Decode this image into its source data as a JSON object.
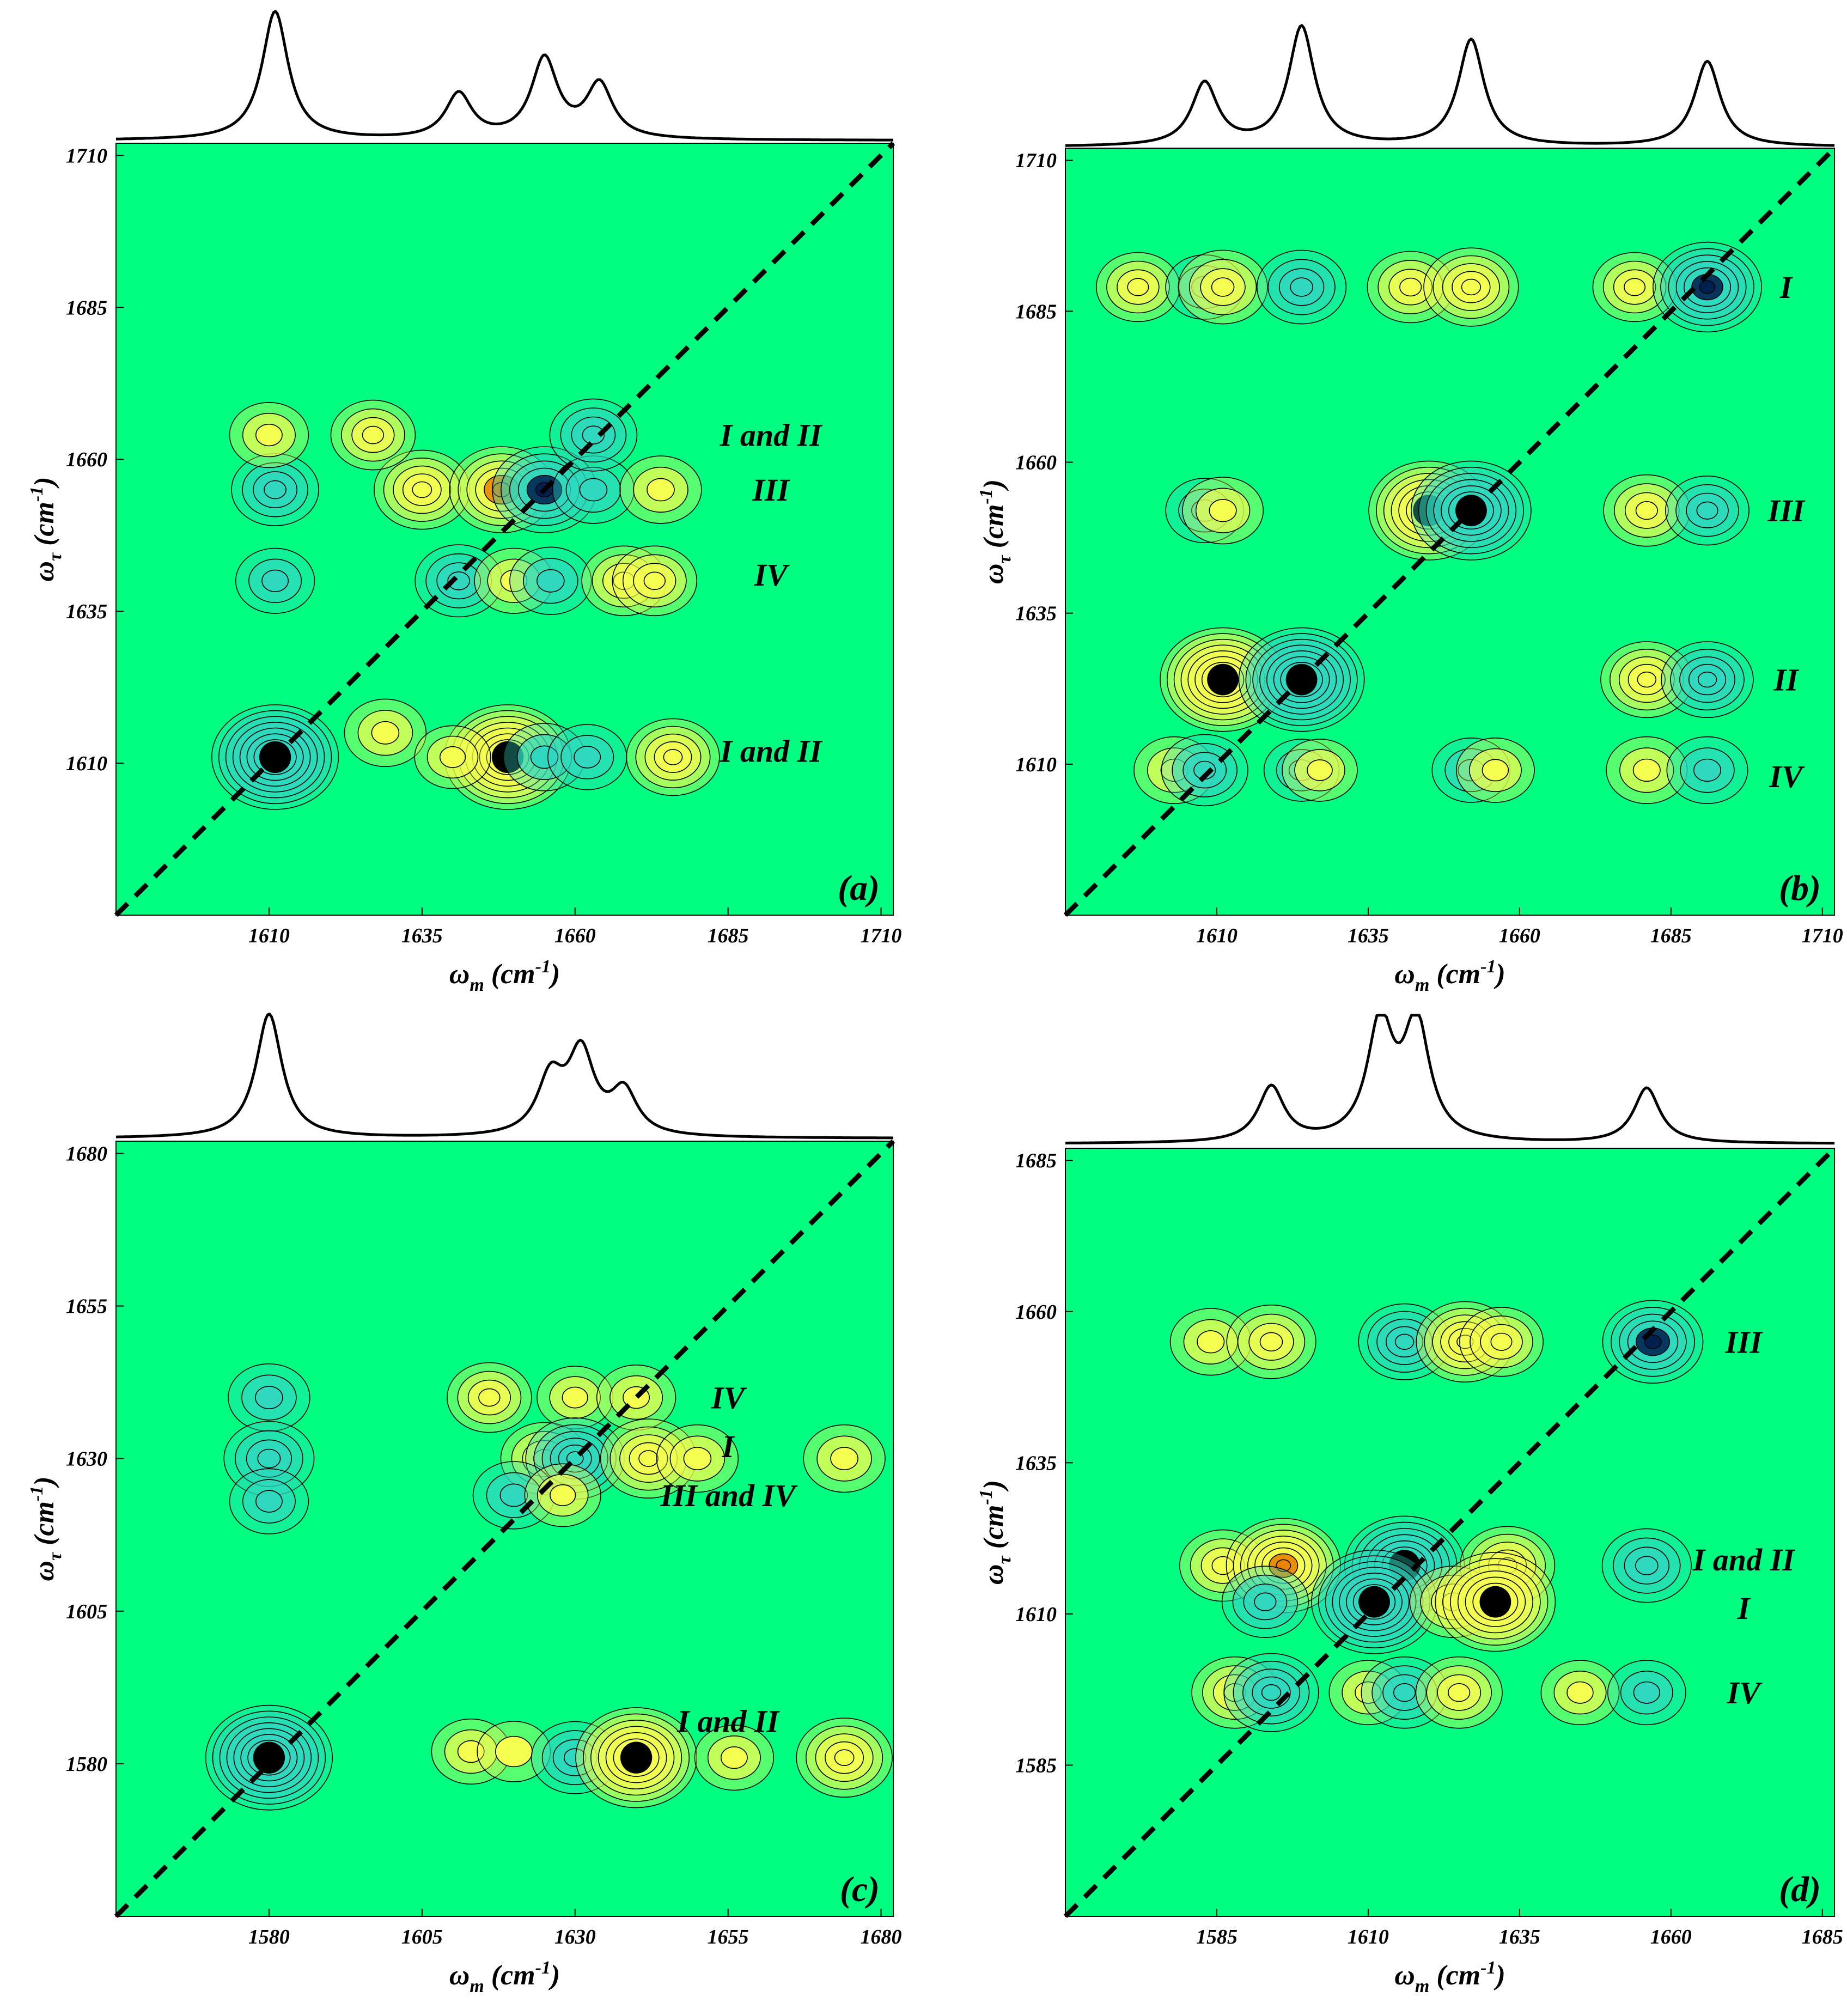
{
  "figure": {
    "colors": {
      "background": "#00ff80",
      "positive": "#f5ff50",
      "positive_core": "#e88400",
      "negative": "#30d8c0",
      "negative_core": "#002050",
      "line": "#000000"
    }
  },
  "chart_data": [
    {
      "type": "contour",
      "panel_label": "(a)",
      "xlabel": "ω_m (cm^-1)",
      "ylabel": "ω_τ (cm^-1)",
      "xlim": [
        1585,
        1712
      ],
      "ylim": [
        1585,
        1712
      ],
      "xticks": [
        1610,
        1635,
        1660,
        1685,
        1710
      ],
      "yticks": [
        1610,
        1635,
        1660,
        1685,
        1710
      ],
      "diagonal": true,
      "spectrum_peaks": [
        {
          "x": 1611,
          "height": 1.0
        },
        {
          "x": 1641,
          "height": 0.35
        },
        {
          "x": 1655,
          "height": 0.62
        },
        {
          "x": 1664,
          "height": 0.42
        }
      ],
      "peaks": [
        {
          "x": 1611,
          "y": 1611,
          "sign": "negative",
          "amp": 1.0
        },
        {
          "x": 1649,
          "y": 1611,
          "sign": "positive",
          "amp": 1.0
        },
        {
          "x": 1629,
          "y": 1615,
          "sign": "positive",
          "amp": 0.2
        },
        {
          "x": 1640,
          "y": 1611,
          "sign": "positive",
          "amp": 0.1
        },
        {
          "x": 1655,
          "y": 1611,
          "sign": "negative",
          "amp": 0.2
        },
        {
          "x": 1662,
          "y": 1611,
          "sign": "negative",
          "amp": 0.15
        },
        {
          "x": 1676,
          "y": 1611,
          "sign": "positive",
          "amp": 0.4
        },
        {
          "x": 1611,
          "y": 1640,
          "sign": "negative",
          "amp": 0.15
        },
        {
          "x": 1641,
          "y": 1640,
          "sign": "negative",
          "amp": 0.3
        },
        {
          "x": 1650,
          "y": 1640,
          "sign": "positive",
          "amp": 0.15
        },
        {
          "x": 1656,
          "y": 1640,
          "sign": "negative",
          "amp": 0.2
        },
        {
          "x": 1668,
          "y": 1640,
          "sign": "positive",
          "amp": 0.25
        },
        {
          "x": 1673,
          "y": 1640,
          "sign": "positive",
          "amp": 0.25
        },
        {
          "x": 1611,
          "y": 1655,
          "sign": "negative",
          "amp": 0.3
        },
        {
          "x": 1635,
          "y": 1655,
          "sign": "positive",
          "amp": 0.45
        },
        {
          "x": 1648,
          "y": 1655,
          "sign": "positive",
          "amp": 0.6
        },
        {
          "x": 1655,
          "y": 1655,
          "sign": "negative",
          "amp": 0.6
        },
        {
          "x": 1663,
          "y": 1655,
          "sign": "negative",
          "amp": 0.2
        },
        {
          "x": 1674,
          "y": 1655,
          "sign": "positive",
          "amp": 0.2
        },
        {
          "x": 1610,
          "y": 1664,
          "sign": "positive",
          "amp": 0.15
        },
        {
          "x": 1627,
          "y": 1664,
          "sign": "positive",
          "amp": 0.25
        },
        {
          "x": 1663,
          "y": 1664,
          "sign": "negative",
          "amp": 0.3
        }
      ],
      "annotations": [
        {
          "text": "I and II",
          "x": 1692,
          "y": 1664
        },
        {
          "text": "III",
          "x": 1692,
          "y": 1655
        },
        {
          "text": "IV",
          "x": 1692,
          "y": 1641
        },
        {
          "text": "I and II",
          "x": 1692,
          "y": 1612
        }
      ]
    },
    {
      "type": "contour",
      "panel_label": "(b)",
      "xlabel": "ω_m (cm^-1)",
      "ylabel": "ω_τ (cm^-1)",
      "xlim": [
        1585,
        1712
      ],
      "ylim": [
        1585,
        1712
      ],
      "xticks": [
        1610,
        1635,
        1660,
        1685,
        1710
      ],
      "yticks": [
        1610,
        1635,
        1660,
        1685,
        1710
      ],
      "diagonal": true,
      "spectrum_peaks": [
        {
          "x": 1608,
          "height": 0.5
        },
        {
          "x": 1624,
          "height": 0.95
        },
        {
          "x": 1652,
          "height": 0.85
        },
        {
          "x": 1691,
          "height": 0.68
        }
      ],
      "peaks": [
        {
          "x": 1597,
          "y": 1689,
          "sign": "positive",
          "amp": 0.25
        },
        {
          "x": 1608,
          "y": 1689,
          "sign": "negative",
          "amp": 0.15
        },
        {
          "x": 1611,
          "y": 1689,
          "sign": "positive",
          "amp": 0.35
        },
        {
          "x": 1624,
          "y": 1689,
          "sign": "negative",
          "amp": 0.35
        },
        {
          "x": 1642,
          "y": 1689,
          "sign": "positive",
          "amp": 0.3
        },
        {
          "x": 1652,
          "y": 1689,
          "sign": "positive",
          "amp": 0.45
        },
        {
          "x": 1679,
          "y": 1689,
          "sign": "positive",
          "amp": 0.25
        },
        {
          "x": 1691,
          "y": 1689,
          "sign": "negative",
          "amp": 0.7
        },
        {
          "x": 1608,
          "y": 1652,
          "sign": "negative",
          "amp": 0.15
        },
        {
          "x": 1611,
          "y": 1652,
          "sign": "positive",
          "amp": 0.2
        },
        {
          "x": 1645,
          "y": 1652,
          "sign": "positive",
          "amp": 0.9
        },
        {
          "x": 1652,
          "y": 1652,
          "sign": "negative",
          "amp": 0.9
        },
        {
          "x": 1681,
          "y": 1652,
          "sign": "positive",
          "amp": 0.3
        },
        {
          "x": 1691,
          "y": 1652,
          "sign": "negative",
          "amp": 0.25
        },
        {
          "x": 1611,
          "y": 1624,
          "sign": "positive",
          "amp": 1.0
        },
        {
          "x": 1624,
          "y": 1624,
          "sign": "negative",
          "amp": 1.0
        },
        {
          "x": 1681,
          "y": 1624,
          "sign": "positive",
          "amp": 0.4
        },
        {
          "x": 1691,
          "y": 1624,
          "sign": "negative",
          "amp": 0.4
        },
        {
          "x": 1603,
          "y": 1609,
          "sign": "positive",
          "amp": 0.2
        },
        {
          "x": 1608,
          "y": 1609,
          "sign": "negative",
          "amp": 0.3
        },
        {
          "x": 1624,
          "y": 1609,
          "sign": "negative",
          "amp": 0.1
        },
        {
          "x": 1627,
          "y": 1609,
          "sign": "positive",
          "amp": 0.1
        },
        {
          "x": 1652,
          "y": 1609,
          "sign": "negative",
          "amp": 0.15
        },
        {
          "x": 1656,
          "y": 1609,
          "sign": "positive",
          "amp": 0.15
        },
        {
          "x": 1681,
          "y": 1609,
          "sign": "positive",
          "amp": 0.2
        },
        {
          "x": 1691,
          "y": 1609,
          "sign": "negative",
          "amp": 0.2
        }
      ],
      "annotations": [
        {
          "text": "I",
          "x": 1704,
          "y": 1689
        },
        {
          "text": "III",
          "x": 1704,
          "y": 1652
        },
        {
          "text": "II",
          "x": 1704,
          "y": 1624
        },
        {
          "text": "IV",
          "x": 1704,
          "y": 1608
        }
      ]
    },
    {
      "type": "contour",
      "panel_label": "(c)",
      "xlabel": "ω_m (cm^-1)",
      "ylabel": "ω_τ (cm^-1)",
      "xlim": [
        1555,
        1682
      ],
      "ylim": [
        1555,
        1682
      ],
      "xticks": [
        1580,
        1605,
        1630,
        1655,
        1680
      ],
      "yticks": [
        1580,
        1605,
        1630,
        1655,
        1680
      ],
      "diagonal": true,
      "spectrum_peaks": [
        {
          "x": 1580,
          "height": 1.0
        },
        {
          "x": 1626,
          "height": 0.45
        },
        {
          "x": 1631,
          "height": 0.65
        },
        {
          "x": 1638,
          "height": 0.35
        }
      ],
      "peaks": [
        {
          "x": 1580,
          "y": 1581,
          "sign": "negative",
          "amp": 1.0
        },
        {
          "x": 1613,
          "y": 1582,
          "sign": "positive",
          "amp": 0.15
        },
        {
          "x": 1620,
          "y": 1582,
          "sign": "positive",
          "amp": 0.05
        },
        {
          "x": 1630,
          "y": 1581,
          "sign": "negative",
          "amp": 0.3
        },
        {
          "x": 1640,
          "y": 1581,
          "sign": "positive",
          "amp": 0.9
        },
        {
          "x": 1656,
          "y": 1581,
          "sign": "positive",
          "amp": 0.15
        },
        {
          "x": 1674,
          "y": 1581,
          "sign": "positive",
          "amp": 0.45
        },
        {
          "x": 1580,
          "y": 1640,
          "sign": "negative",
          "amp": 0.2
        },
        {
          "x": 1580,
          "y": 1630,
          "sign": "negative",
          "amp": 0.35
        },
        {
          "x": 1580,
          "y": 1623,
          "sign": "negative",
          "amp": 0.15
        },
        {
          "x": 1616,
          "y": 1640,
          "sign": "positive",
          "amp": 0.25
        },
        {
          "x": 1630,
          "y": 1640,
          "sign": "positive",
          "amp": 0.1
        },
        {
          "x": 1640,
          "y": 1640,
          "sign": "positive",
          "amp": 0.15
        },
        {
          "x": 1625,
          "y": 1630,
          "sign": "positive",
          "amp": 0.3
        },
        {
          "x": 1630,
          "y": 1630,
          "sign": "negative",
          "amp": 0.5
        },
        {
          "x": 1642,
          "y": 1630,
          "sign": "positive",
          "amp": 0.45
        },
        {
          "x": 1650,
          "y": 1630,
          "sign": "positive",
          "amp": 0.2
        },
        {
          "x": 1674,
          "y": 1630,
          "sign": "positive",
          "amp": 0.2
        },
        {
          "x": 1620,
          "y": 1624,
          "sign": "negative",
          "amp": 0.2
        },
        {
          "x": 1628,
          "y": 1624,
          "sign": "positive",
          "amp": 0.1
        }
      ],
      "annotations": [
        {
          "text": "IV",
          "x": 1655,
          "y": 1640
        },
        {
          "text": "I",
          "x": 1655,
          "y": 1632
        },
        {
          "text": "III and IV",
          "x": 1655,
          "y": 1624
        },
        {
          "text": "I and II",
          "x": 1655,
          "y": 1587
        }
      ]
    },
    {
      "type": "contour",
      "panel_label": "(d)",
      "xlabel": "ω_m (cm^-1)",
      "ylabel": "ω_τ (cm^-1)",
      "xlim": [
        1560,
        1687
      ],
      "ylim": [
        1560,
        1687
      ],
      "xticks": [
        1585,
        1610,
        1635,
        1660,
        1685
      ],
      "yticks": [
        1585,
        1610,
        1635,
        1660,
        1685
      ],
      "diagonal": true,
      "spectrum_peaks": [
        {
          "x": 1594,
          "height": 0.45
        },
        {
          "x": 1612,
          "height": 0.95
        },
        {
          "x": 1618,
          "height": 0.95
        },
        {
          "x": 1656,
          "height": 0.45
        }
      ],
      "peaks": [
        {
          "x": 1584,
          "y": 1655,
          "sign": "positive",
          "amp": 0.2
        },
        {
          "x": 1594,
          "y": 1655,
          "sign": "positive",
          "amp": 0.35
        },
        {
          "x": 1616,
          "y": 1655,
          "sign": "negative",
          "amp": 0.4
        },
        {
          "x": 1626,
          "y": 1655,
          "sign": "positive",
          "amp": 0.5
        },
        {
          "x": 1632,
          "y": 1655,
          "sign": "positive",
          "amp": 0.25
        },
        {
          "x": 1657,
          "y": 1655,
          "sign": "negative",
          "amp": 0.55
        },
        {
          "x": 1586,
          "y": 1618,
          "sign": "positive",
          "amp": 0.3
        },
        {
          "x": 1596,
          "y": 1618,
          "sign": "positive",
          "amp": 0.8
        },
        {
          "x": 1616,
          "y": 1618,
          "sign": "negative",
          "amp": 0.9
        },
        {
          "x": 1633,
          "y": 1618,
          "sign": "positive",
          "amp": 0.45
        },
        {
          "x": 1656,
          "y": 1618,
          "sign": "negative",
          "amp": 0.35
        },
        {
          "x": 1593,
          "y": 1612,
          "sign": "negative",
          "amp": 0.3
        },
        {
          "x": 1611,
          "y": 1612,
          "sign": "negative",
          "amp": 1.0
        },
        {
          "x": 1624,
          "y": 1612,
          "sign": "positive",
          "amp": 0.3
        },
        {
          "x": 1631,
          "y": 1612,
          "sign": "positive",
          "amp": 0.9
        },
        {
          "x": 1588,
          "y": 1597,
          "sign": "positive",
          "amp": 0.3
        },
        {
          "x": 1594,
          "y": 1597,
          "sign": "negative",
          "amp": 0.45
        },
        {
          "x": 1610,
          "y": 1597,
          "sign": "positive",
          "amp": 0.15
        },
        {
          "x": 1616,
          "y": 1597,
          "sign": "negative",
          "amp": 0.3
        },
        {
          "x": 1625,
          "y": 1597,
          "sign": "positive",
          "amp": 0.3
        },
        {
          "x": 1645,
          "y": 1597,
          "sign": "positive",
          "amp": 0.15
        },
        {
          "x": 1656,
          "y": 1597,
          "sign": "negative",
          "amp": 0.15
        }
      ],
      "annotations": [
        {
          "text": "III",
          "x": 1672,
          "y": 1655
        },
        {
          "text": "I and II",
          "x": 1672,
          "y": 1619
        },
        {
          "text": "I",
          "x": 1672,
          "y": 1611
        },
        {
          "text": "IV",
          "x": 1672,
          "y": 1597
        }
      ]
    }
  ]
}
